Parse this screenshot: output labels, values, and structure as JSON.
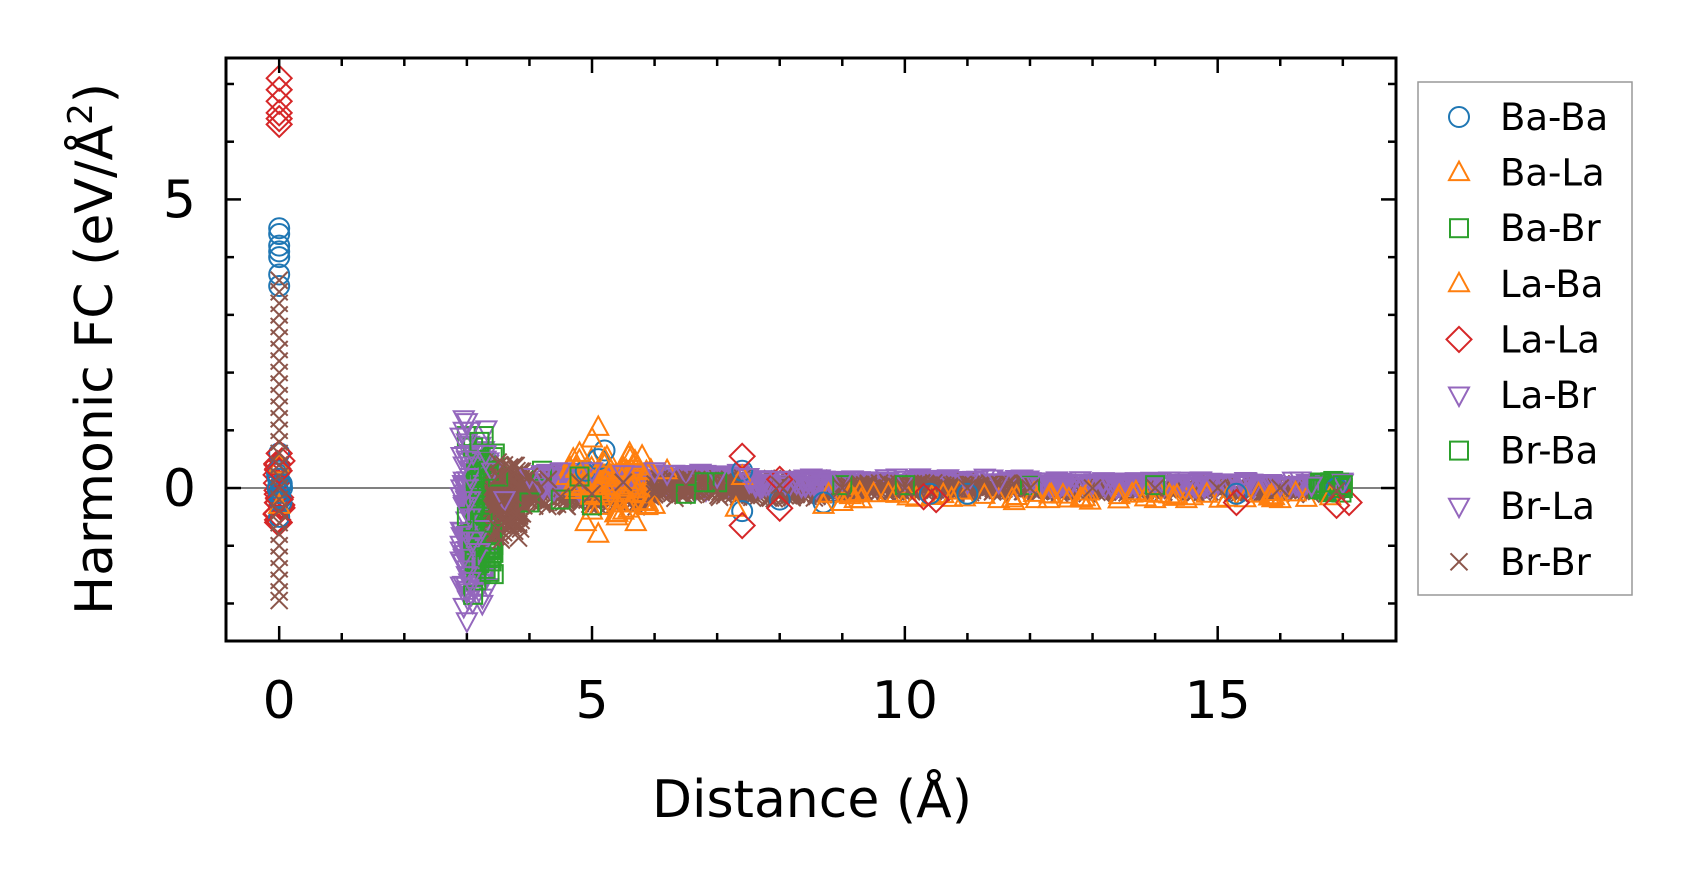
{
  "chart_data": {
    "type": "scatter",
    "xlabel": "Distance (Å)",
    "ylabel": "Harmonic FC (eV/Å",
    "ylabel_superscript": "2",
    "ylabel_close": ")",
    "xlim": [
      -0.85,
      17.85
    ],
    "ylim": [
      -2.65,
      7.45
    ],
    "xticks": [
      0,
      5,
      10,
      15
    ],
    "yticks": [
      0,
      5
    ],
    "x_minor_step": 1,
    "y_minor_step": 1,
    "reference_line_y": 0,
    "grid": false,
    "legend_position": "right",
    "series": [
      {
        "name": "Ba-Ba",
        "color": "#1f77b4",
        "marker": "circle",
        "points": [
          [
            0,
            4.5
          ],
          [
            0,
            4.4
          ],
          [
            0,
            4.2
          ],
          [
            0,
            4.1
          ],
          [
            0,
            4.0
          ],
          [
            0,
            3.7
          ],
          [
            0,
            3.5
          ],
          [
            0,
            0.6
          ],
          [
            0,
            0.3
          ],
          [
            0,
            -0.2
          ],
          [
            0,
            -0.5
          ],
          [
            5.2,
            0.65
          ],
          [
            5.1,
            0.5
          ],
          [
            4.9,
            0.3
          ],
          [
            7.4,
            0.3
          ],
          [
            7.4,
            -0.4
          ],
          [
            8.0,
            -0.2
          ],
          [
            8.7,
            -0.25
          ],
          [
            10.4,
            -0.1
          ],
          [
            11.0,
            -0.1
          ],
          [
            15.3,
            -0.1
          ],
          [
            16.9,
            0.0
          ]
        ]
      },
      {
        "name": "Ba-La",
        "color": "#ff7f0e",
        "marker": "triangle-up",
        "points": [
          [
            0,
            0.4
          ],
          [
            0,
            -0.3
          ],
          [
            5.1,
            1.05
          ],
          [
            5.0,
            0.85
          ],
          [
            4.8,
            0.6
          ],
          [
            5.2,
            0.5
          ],
          [
            5.6,
            0.6
          ],
          [
            5.8,
            0.55
          ],
          [
            5.3,
            0.3
          ],
          [
            4.6,
            0.2
          ],
          [
            5.0,
            -0.4
          ],
          [
            5.4,
            -0.5
          ],
          [
            5.1,
            -0.8
          ],
          [
            4.9,
            -0.6
          ],
          [
            5.7,
            -0.6
          ],
          [
            6.0,
            -0.3
          ],
          [
            7.3,
            -0.35
          ],
          [
            7.4,
            0.2
          ],
          [
            8.7,
            -0.3
          ],
          [
            9.0,
            -0.25
          ],
          [
            9.5,
            -0.1
          ],
          [
            11.5,
            -0.2
          ],
          [
            12.3,
            -0.2
          ],
          [
            14.0,
            -0.2
          ],
          [
            14.5,
            -0.2
          ],
          [
            16.0,
            -0.2
          ],
          [
            16.8,
            -0.15
          ]
        ]
      },
      {
        "name": "Ba-Br",
        "color": "#2ca02c",
        "marker": "square",
        "points": [
          [
            3.0,
            0.9
          ],
          [
            3.1,
            0.7
          ],
          [
            3.2,
            0.4
          ],
          [
            3.0,
            -0.5
          ],
          [
            3.1,
            -0.9
          ],
          [
            3.2,
            -1.3
          ],
          [
            3.15,
            -1.6
          ],
          [
            3.1,
            -1.85
          ],
          [
            3.3,
            -1.4
          ],
          [
            3.4,
            -0.8
          ],
          [
            3.5,
            0.2
          ],
          [
            4.2,
            0.3
          ],
          [
            4.5,
            -0.2
          ],
          [
            5.0,
            -0.3
          ],
          [
            6.5,
            -0.1
          ],
          [
            7.0,
            0.1
          ],
          [
            9.0,
            0.05
          ],
          [
            12.0,
            0.05
          ],
          [
            16.8,
            0.1
          ],
          [
            17.0,
            0.0
          ]
        ]
      },
      {
        "name": "La-Ba",
        "color": "#ff7f0e",
        "marker": "triangle-up",
        "points": [
          [
            4.7,
            0.5
          ],
          [
            5.2,
            0.4
          ],
          [
            5.5,
            -0.4
          ],
          [
            5.9,
            -0.3
          ],
          [
            6.2,
            0.3
          ],
          [
            9.2,
            -0.2
          ],
          [
            12.1,
            -0.2
          ],
          [
            15.9,
            -0.15
          ]
        ]
      },
      {
        "name": "La-La",
        "color": "#d62728",
        "marker": "diamond",
        "points": [
          [
            0,
            7.1
          ],
          [
            0,
            6.9
          ],
          [
            0,
            6.7
          ],
          [
            0,
            6.5
          ],
          [
            0,
            6.4
          ],
          [
            0,
            6.3
          ],
          [
            0,
            0.6
          ],
          [
            0,
            0.3
          ],
          [
            0,
            -0.2
          ],
          [
            0,
            -0.6
          ],
          [
            7.4,
            0.55
          ],
          [
            7.4,
            -0.65
          ],
          [
            8.0,
            0.15
          ],
          [
            8.0,
            -0.35
          ],
          [
            10.3,
            -0.15
          ],
          [
            10.5,
            -0.2
          ],
          [
            15.3,
            -0.25
          ],
          [
            16.9,
            -0.3
          ],
          [
            17.1,
            -0.25
          ]
        ]
      },
      {
        "name": "La-Br",
        "color": "#9467bd",
        "marker": "triangle-down",
        "points": [
          [
            2.95,
            1.2
          ],
          [
            3.0,
            1.15
          ],
          [
            3.05,
            1.0
          ],
          [
            2.9,
            0.9
          ],
          [
            3.0,
            0.8
          ],
          [
            3.1,
            0.6
          ],
          [
            2.95,
            0.4
          ],
          [
            3.05,
            0.2
          ],
          [
            3.0,
            0.0
          ],
          [
            2.95,
            -0.3
          ],
          [
            3.05,
            -0.5
          ],
          [
            3.0,
            -0.8
          ],
          [
            3.1,
            -1.0
          ],
          [
            2.95,
            -1.2
          ],
          [
            3.0,
            -1.4
          ],
          [
            3.05,
            -1.6
          ],
          [
            3.0,
            -1.8
          ],
          [
            2.95,
            -2.05
          ],
          [
            3.0,
            -2.3
          ],
          [
            3.2,
            -1.1
          ],
          [
            3.25,
            -0.7
          ],
          [
            3.3,
            0.5
          ],
          [
            3.4,
            0.3
          ],
          [
            3.6,
            -0.2
          ],
          [
            4.0,
            0.2
          ],
          [
            4.5,
            0.3
          ],
          [
            5.0,
            0.3
          ],
          [
            5.5,
            0.25
          ],
          [
            6.0,
            0.3
          ],
          [
            6.5,
            0.25
          ],
          [
            7.0,
            0.2
          ],
          [
            7.5,
            0.2
          ],
          [
            8.0,
            0.15
          ],
          [
            9.0,
            0.15
          ],
          [
            10.0,
            0.15
          ],
          [
            11.0,
            0.1
          ],
          [
            12.0,
            0.1
          ],
          [
            13.0,
            0.1
          ],
          [
            14.0,
            0.1
          ],
          [
            15.0,
            0.1
          ],
          [
            16.0,
            0.05
          ],
          [
            17.0,
            0.1
          ]
        ]
      },
      {
        "name": "Br-Ba",
        "color": "#2ca02c",
        "marker": "square",
        "points": [
          [
            3.2,
            0.8
          ],
          [
            3.25,
            -0.6
          ],
          [
            3.3,
            -1.2
          ],
          [
            3.35,
            0.3
          ],
          [
            4.0,
            -0.25
          ],
          [
            4.8,
            0.2
          ],
          [
            6.8,
            0.1
          ],
          [
            10.0,
            0.05
          ],
          [
            14.0,
            0.05
          ],
          [
            17.0,
            0.05
          ]
        ]
      },
      {
        "name": "Br-La",
        "color": "#9467bd",
        "marker": "triangle-down",
        "points": [
          [
            2.95,
            1.0
          ],
          [
            3.0,
            0.5
          ],
          [
            3.05,
            -0.2
          ],
          [
            3.1,
            -0.9
          ],
          [
            3.0,
            -1.5
          ],
          [
            3.3,
            0.6
          ],
          [
            4.2,
            0.25
          ],
          [
            6.2,
            0.25
          ],
          [
            8.5,
            0.15
          ],
          [
            11.5,
            0.1
          ],
          [
            14.5,
            0.1
          ],
          [
            16.5,
            0.05
          ]
        ]
      },
      {
        "name": "Br-Br",
        "color": "#8c564b",
        "marker": "cross",
        "points": [
          [
            0,
            3.6
          ],
          [
            0,
            3.4
          ],
          [
            0,
            3.2
          ],
          [
            0,
            3.0
          ],
          [
            0,
            2.8
          ],
          [
            0,
            2.6
          ],
          [
            0,
            2.4
          ],
          [
            0,
            2.2
          ],
          [
            0,
            2.0
          ],
          [
            0,
            1.8
          ],
          [
            0,
            1.6
          ],
          [
            0,
            1.4
          ],
          [
            0,
            1.2
          ],
          [
            0,
            1.0
          ],
          [
            0,
            0.8
          ],
          [
            0,
            0.6
          ],
          [
            0,
            0.4
          ],
          [
            0,
            0.2
          ],
          [
            0,
            0.0
          ],
          [
            0,
            -0.2
          ],
          [
            0,
            -0.4
          ],
          [
            0,
            -0.6
          ],
          [
            0,
            -0.8
          ],
          [
            0,
            -1.0
          ],
          [
            0,
            -1.2
          ],
          [
            0,
            -1.4
          ],
          [
            0,
            -1.6
          ],
          [
            0,
            -1.8
          ],
          [
            0,
            -1.95
          ],
          [
            3.5,
            0.45
          ],
          [
            3.5,
            0.2
          ],
          [
            3.5,
            -0.3
          ],
          [
            3.5,
            -0.7
          ],
          [
            3.55,
            -0.9
          ],
          [
            3.6,
            0.4
          ],
          [
            3.7,
            0.35
          ],
          [
            3.7,
            -0.6
          ],
          [
            3.8,
            0.3
          ],
          [
            3.8,
            -0.45
          ],
          [
            3.9,
            -0.3
          ],
          [
            4.0,
            0.2
          ],
          [
            4.1,
            -0.2
          ],
          [
            4.3,
            0.15
          ],
          [
            4.5,
            -0.15
          ],
          [
            4.8,
            0.1
          ],
          [
            5.0,
            -0.1
          ],
          [
            5.5,
            0.1
          ],
          [
            6.0,
            -0.1
          ],
          [
            6.5,
            0.05
          ],
          [
            7.0,
            -0.05
          ],
          [
            8.0,
            0.05
          ],
          [
            9.0,
            0.0
          ],
          [
            10.0,
            0.0
          ],
          [
            11.0,
            0.0
          ],
          [
            12.0,
            0.0
          ],
          [
            13.0,
            0.0
          ],
          [
            14.0,
            0.0
          ],
          [
            15.0,
            0.0
          ],
          [
            16.0,
            0.0
          ],
          [
            16.9,
            -0.05
          ]
        ]
      }
    ],
    "bands": [
      {
        "color": "#9467bd",
        "marker": "triangle-down",
        "x": [
          2.9,
          3.35
        ],
        "ylow": -2.2,
        "yhigh": 1.15,
        "n": 160
      },
      {
        "color": "#2ca02c",
        "marker": "square",
        "x": [
          3.1,
          3.45
        ],
        "ylow": -1.8,
        "yhigh": 0.95,
        "n": 60
      },
      {
        "color": "#8c564b",
        "marker": "cross",
        "x": [
          3.4,
          3.9
        ],
        "ylow": -0.9,
        "yhigh": 0.5,
        "n": 160
      },
      {
        "color": "#8c564b",
        "marker": "cross",
        "x": [
          3.9,
          6.0
        ],
        "ylow": -0.35,
        "yhigh": 0.3,
        "n": 260
      },
      {
        "color": "#9467bd",
        "marker": "triangle-down",
        "x": [
          4.2,
          7.5
        ],
        "ylow": -0.05,
        "yhigh": 0.3,
        "n": 200
      },
      {
        "color": "#ff7f0e",
        "marker": "triangle-up",
        "x": [
          4.6,
          6.0
        ],
        "ylow": -0.55,
        "yhigh": 0.6,
        "n": 60
      },
      {
        "color": "#8c564b",
        "marker": "cross",
        "x": [
          6.0,
          9.0
        ],
        "ylow": -0.2,
        "yhigh": 0.2,
        "n": 260
      },
      {
        "color": "#9467bd",
        "marker": "triangle-down",
        "x": [
          7.5,
          12.0
        ],
        "ylow": 0.0,
        "yhigh": 0.2,
        "n": 180
      },
      {
        "color": "#8c564b",
        "marker": "cross",
        "x": [
          9.0,
          17.0
        ],
        "ylow": -0.12,
        "yhigh": 0.12,
        "n": 420
      },
      {
        "color": "#9467bd",
        "marker": "triangle-down",
        "x": [
          12.0,
          17.0
        ],
        "ylow": 0.0,
        "yhigh": 0.15,
        "n": 160
      },
      {
        "color": "#ff7f0e",
        "marker": "triangle-up",
        "x": [
          8.6,
          16.5
        ],
        "ylow": -0.25,
        "yhigh": -0.05,
        "n": 50
      },
      {
        "color": "#2ca02c",
        "marker": "square",
        "x": [
          16.6,
          17.0
        ],
        "ylow": -0.1,
        "yhigh": 0.15,
        "n": 20
      },
      {
        "color": "#d62728",
        "marker": "diamond",
        "x": [
          -0.05,
          0.05
        ],
        "ylow": -0.7,
        "yhigh": 0.6,
        "n": 25
      },
      {
        "color": "#1f77b4",
        "marker": "circle",
        "x": [
          -0.05,
          0.05
        ],
        "ylow": -0.3,
        "yhigh": 0.4,
        "n": 10
      }
    ]
  }
}
